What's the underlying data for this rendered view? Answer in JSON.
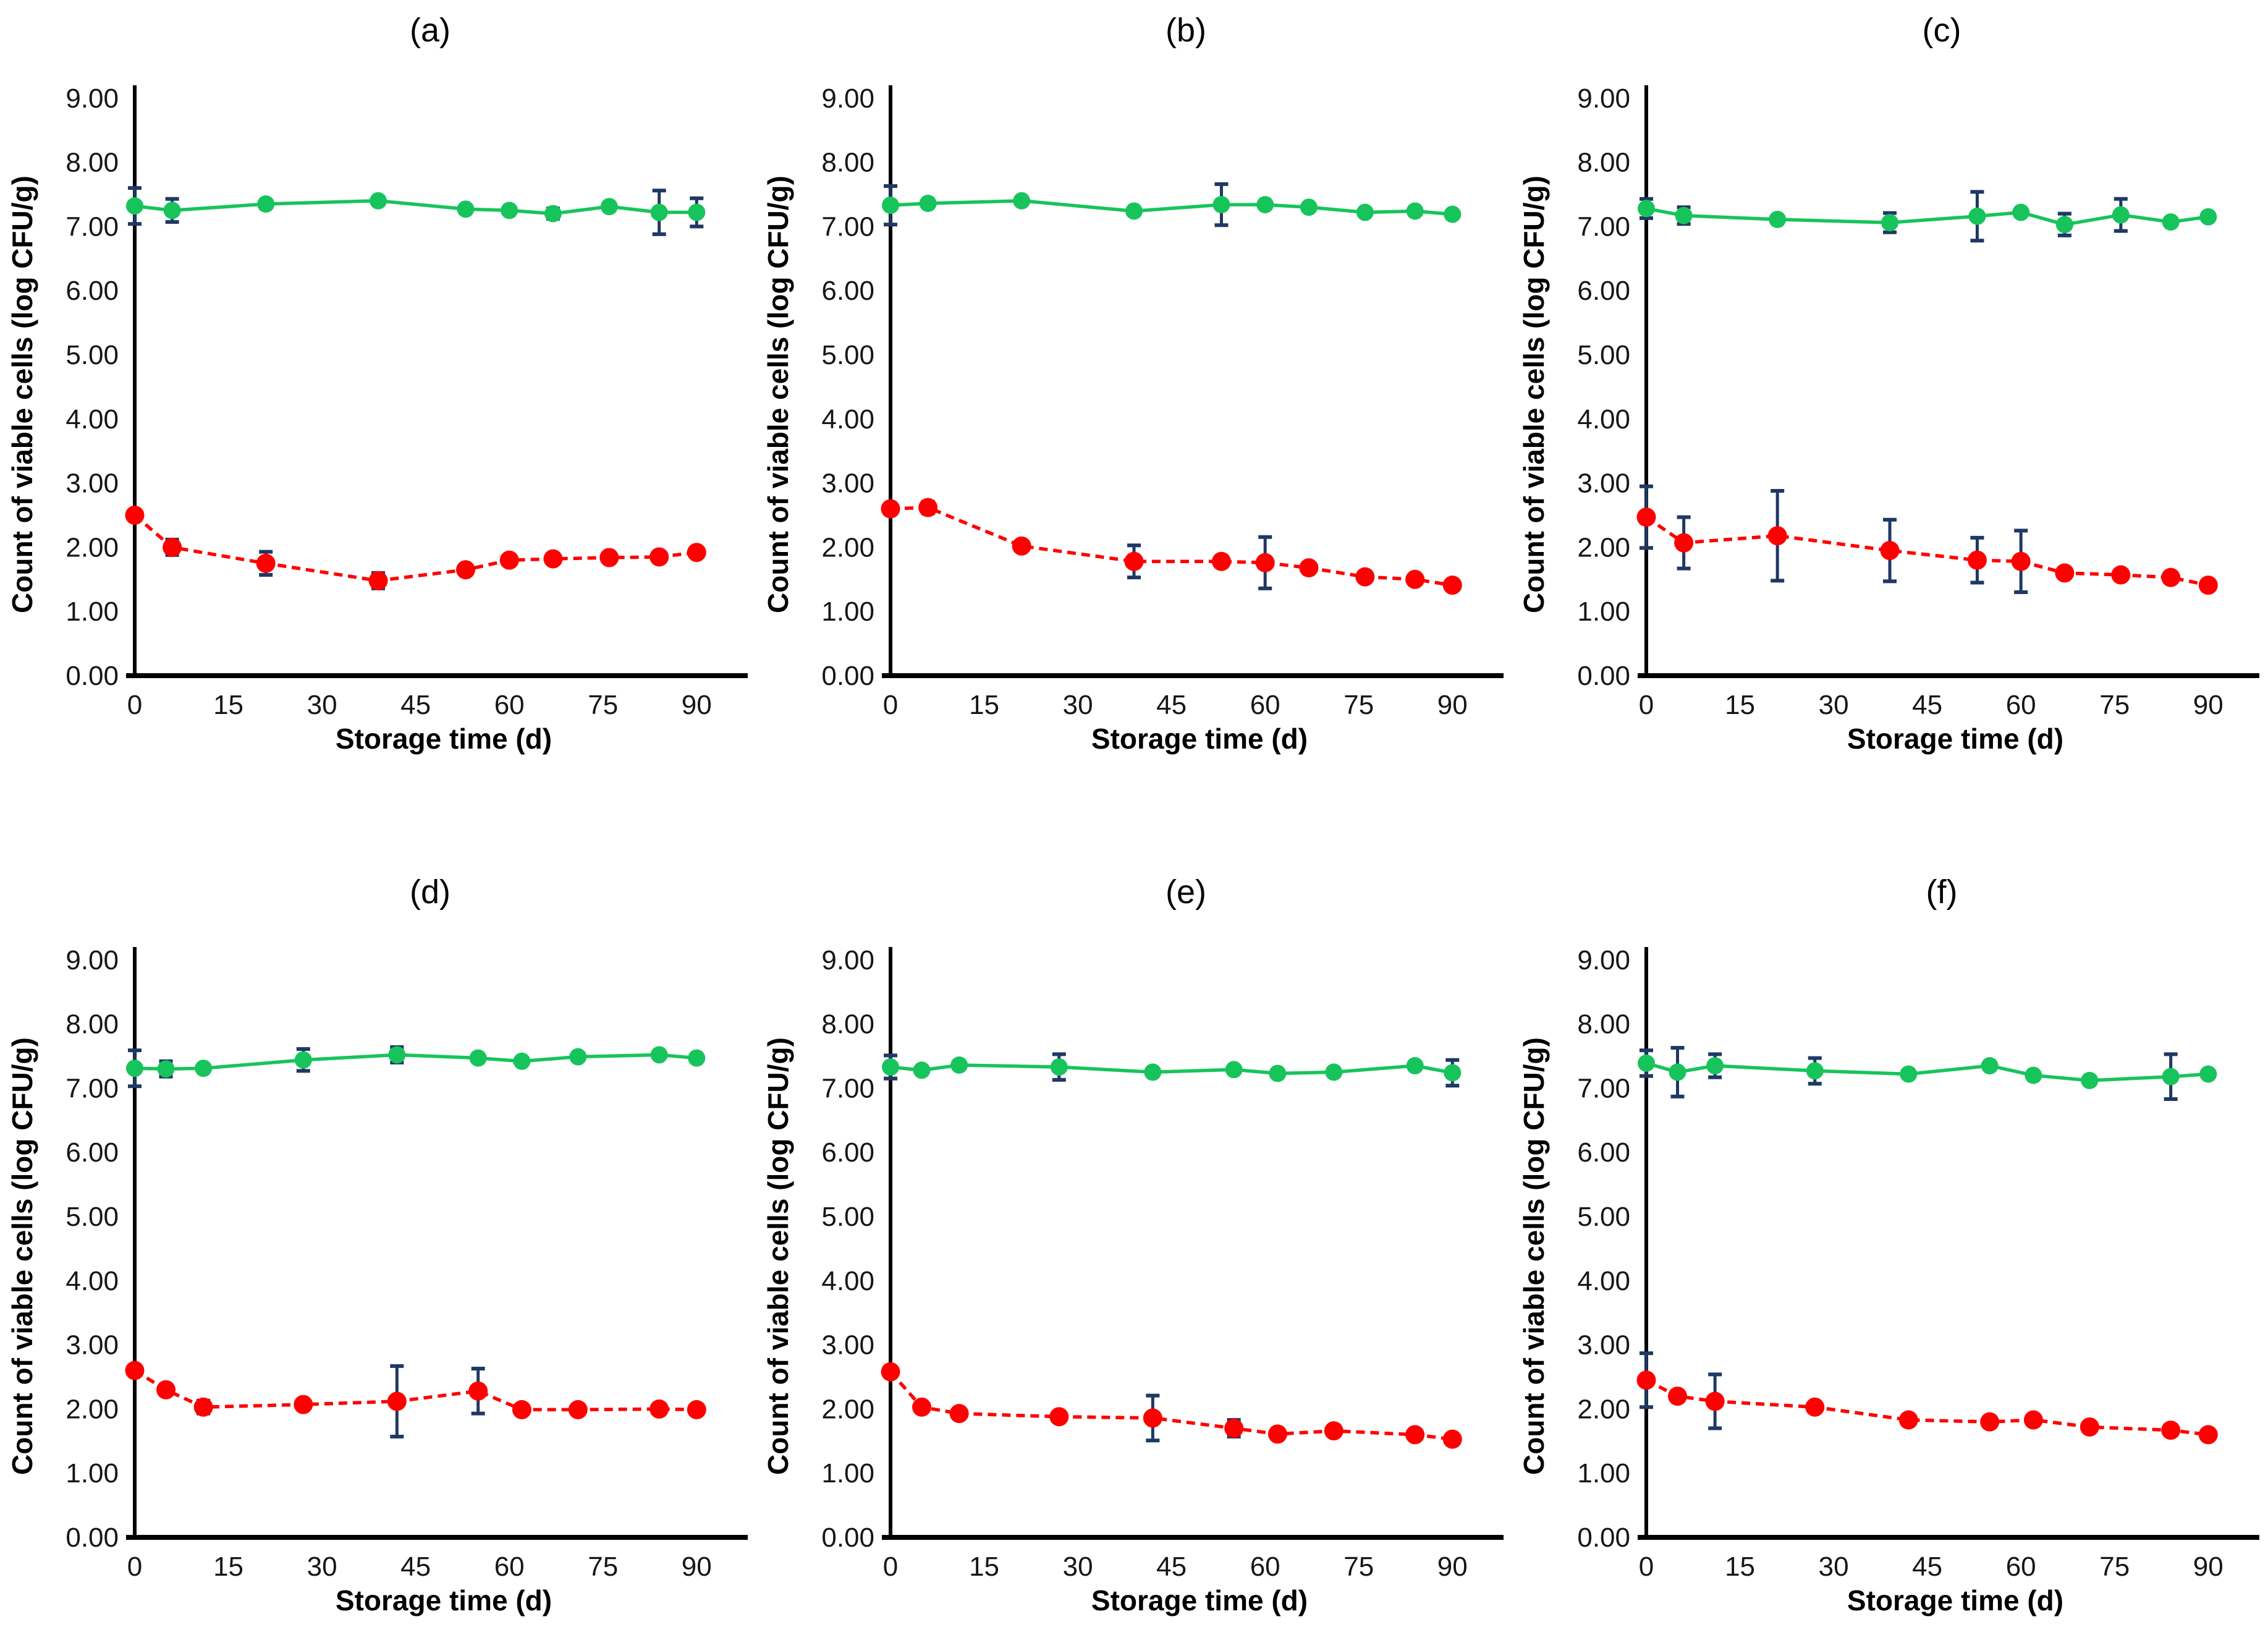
{
  "figure": {
    "background": "#FFFFFF",
    "axis_color": "#000000",
    "error_bar_color": "#1F3864",
    "viable_series_color": "#17C45B",
    "injured_series_color": "#FE0000"
  },
  "chart_data": [
    {
      "panel": "(a)",
      "type": "line",
      "xlabel": "Storage time (d)",
      "ylabel": "Count of viable cells (log CFU/g)",
      "xlim": [
        0,
        90
      ],
      "ylim": [
        0,
        9
      ],
      "xticks": [
        0,
        15,
        30,
        45,
        60,
        75,
        90
      ],
      "ytick_labels": [
        "0.00",
        "1.00",
        "2.00",
        "3.00",
        "4.00",
        "5.00",
        "6.00",
        "7.00",
        "8.00",
        "9.00"
      ],
      "grid": false,
      "legend": "none",
      "x": [
        0,
        6,
        21,
        39,
        53,
        60,
        67,
        76,
        84,
        90
      ],
      "series": [
        {
          "name": "green-solid",
          "color": "#17C45B",
          "dashed": false,
          "y": [
            7.32,
            7.25,
            7.35,
            7.4,
            7.27,
            7.25,
            7.2,
            7.31,
            7.22,
            7.22
          ],
          "yerr": [
            0.28,
            0.18,
            0.06,
            0.05,
            0,
            0,
            0.08,
            0,
            0.34,
            0.22
          ]
        },
        {
          "name": "red-dashed",
          "color": "#FE0000",
          "dashed": true,
          "y": [
            2.5,
            2.0,
            1.75,
            1.48,
            1.65,
            1.8,
            1.82,
            1.84,
            1.85,
            1.92
          ],
          "yerr": [
            0,
            0.12,
            0.18,
            0.12,
            0.07,
            0,
            0,
            0,
            0,
            0
          ]
        }
      ]
    },
    {
      "panel": "(b)",
      "type": "line",
      "xlabel": "Storage time (d)",
      "ylabel": "Count of viable cells (log CFU/g)",
      "xlim": [
        0,
        90
      ],
      "ylim": [
        0,
        9
      ],
      "xticks": [
        0,
        15,
        30,
        45,
        60,
        75,
        90
      ],
      "ytick_labels": [
        "0.00",
        "1.00",
        "2.00",
        "3.00",
        "4.00",
        "5.00",
        "6.00",
        "7.00",
        "8.00",
        "9.00"
      ],
      "grid": false,
      "legend": "none",
      "x": [
        0,
        6,
        21,
        39,
        53,
        60,
        67,
        76,
        84,
        90
      ],
      "series": [
        {
          "name": "green-solid",
          "color": "#17C45B",
          "dashed": false,
          "y": [
            7.33,
            7.36,
            7.4,
            7.24,
            7.34,
            7.34,
            7.3,
            7.22,
            7.24,
            7.19
          ],
          "yerr": [
            0.3,
            0,
            0,
            0,
            0.32,
            0,
            0,
            0,
            0,
            0
          ]
        },
        {
          "name": "red-dashed",
          "color": "#FE0000",
          "dashed": true,
          "y": [
            2.6,
            2.62,
            2.02,
            1.78,
            1.78,
            1.76,
            1.68,
            1.54,
            1.5,
            1.41
          ],
          "yerr": [
            0,
            0.09,
            0,
            0.25,
            0.07,
            0.4,
            0,
            0,
            0,
            0
          ]
        }
      ]
    },
    {
      "panel": "(c)",
      "type": "line",
      "xlabel": "Storage time (d)",
      "ylabel": "Count of viable cells (log CFU/g)",
      "xlim": [
        0,
        90
      ],
      "ylim": [
        0,
        9
      ],
      "xticks": [
        0,
        15,
        30,
        45,
        60,
        75,
        90
      ],
      "ytick_labels": [
        "0.00",
        "1.00",
        "2.00",
        "3.00",
        "4.00",
        "5.00",
        "6.00",
        "7.00",
        "8.00",
        "9.00"
      ],
      "grid": false,
      "legend": "none",
      "x": [
        0,
        6,
        21,
        39,
        53,
        60,
        67,
        76,
        84,
        90
      ],
      "series": [
        {
          "name": "green-solid",
          "color": "#17C45B",
          "dashed": false,
          "y": [
            7.28,
            7.17,
            7.11,
            7.06,
            7.16,
            7.22,
            7.03,
            7.18,
            7.07,
            7.15
          ],
          "yerr": [
            0.15,
            0.13,
            0,
            0.15,
            0.38,
            0,
            0.17,
            0.25,
            0,
            0
          ]
        },
        {
          "name": "red-dashed",
          "color": "#FE0000",
          "dashed": true,
          "y": [
            2.47,
            2.07,
            2.18,
            1.95,
            1.8,
            1.78,
            1.6,
            1.57,
            1.53,
            1.41
          ],
          "yerr": [
            0.48,
            0.4,
            0.7,
            0.48,
            0.35,
            0.48,
            0,
            0,
            0,
            0
          ]
        }
      ]
    },
    {
      "panel": "(d)",
      "type": "line",
      "xlabel": "Storage time (d)",
      "ylabel": "Count of viable cells (log CFU/g)",
      "xlim": [
        0,
        90
      ],
      "ylim": [
        0,
        9
      ],
      "xticks": [
        0,
        15,
        30,
        45,
        60,
        75,
        90
      ],
      "ytick_labels": [
        "0.00",
        "1.00",
        "2.00",
        "3.00",
        "4.00",
        "5.00",
        "6.00",
        "7.00",
        "8.00",
        "9.00"
      ],
      "grid": false,
      "legend": "none",
      "x": [
        0,
        5,
        11,
        27,
        42,
        55,
        62,
        71,
        84,
        90
      ],
      "series": [
        {
          "name": "green-solid",
          "color": "#17C45B",
          "dashed": false,
          "y": [
            7.31,
            7.3,
            7.31,
            7.44,
            7.52,
            7.47,
            7.42,
            7.49,
            7.52,
            7.47
          ],
          "yerr": [
            0.28,
            0.12,
            0,
            0.17,
            0.12,
            0,
            0,
            0,
            0,
            0
          ]
        },
        {
          "name": "red-dashed",
          "color": "#FE0000",
          "dashed": true,
          "y": [
            2.6,
            2.3,
            2.03,
            2.07,
            2.12,
            2.28,
            1.99,
            1.99,
            2.0,
            1.99
          ],
          "yerr": [
            0,
            0,
            0.1,
            0,
            0.55,
            0.35,
            0,
            0,
            0,
            0
          ]
        }
      ]
    },
    {
      "panel": "(e)",
      "type": "line",
      "xlabel": "Storage time (d)",
      "ylabel": "Count of viable cells (log CFU/g)",
      "xlim": [
        0,
        90
      ],
      "ylim": [
        0,
        9
      ],
      "xticks": [
        0,
        15,
        30,
        45,
        60,
        75,
        90
      ],
      "ytick_labels": [
        "0.00",
        "1.00",
        "2.00",
        "3.00",
        "4.00",
        "5.00",
        "6.00",
        "7.00",
        "8.00",
        "9.00"
      ],
      "grid": false,
      "legend": "none",
      "x": [
        0,
        5,
        11,
        27,
        42,
        55,
        62,
        71,
        84,
        90
      ],
      "series": [
        {
          "name": "green-solid",
          "color": "#17C45B",
          "dashed": false,
          "y": [
            7.33,
            7.28,
            7.36,
            7.33,
            7.25,
            7.29,
            7.23,
            7.25,
            7.35,
            7.24
          ],
          "yerr": [
            0.18,
            0,
            0,
            0.2,
            0,
            0,
            0,
            0,
            0,
            0.2
          ]
        },
        {
          "name": "red-dashed",
          "color": "#FE0000",
          "dashed": true,
          "y": [
            2.58,
            2.03,
            1.93,
            1.88,
            1.86,
            1.7,
            1.61,
            1.66,
            1.6,
            1.53
          ],
          "yerr": [
            0,
            0,
            0,
            0,
            0.35,
            0.13,
            0,
            0,
            0,
            0
          ]
        }
      ]
    },
    {
      "panel": "(f)",
      "type": "line",
      "xlabel": "Storage time (d)",
      "ylabel": "Count of viable cells (log CFU/g)",
      "xlim": [
        0,
        90
      ],
      "ylim": [
        0,
        9
      ],
      "xticks": [
        0,
        15,
        30,
        45,
        60,
        75,
        90
      ],
      "ytick_labels": [
        "0.00",
        "1.00",
        "2.00",
        "3.00",
        "4.00",
        "5.00",
        "6.00",
        "7.00",
        "8.00",
        "9.00"
      ],
      "grid": false,
      "legend": "none",
      "x": [
        0,
        5,
        11,
        27,
        42,
        55,
        62,
        71,
        84,
        90
      ],
      "series": [
        {
          "name": "green-solid",
          "color": "#17C45B",
          "dashed": false,
          "y": [
            7.39,
            7.25,
            7.35,
            7.27,
            7.22,
            7.35,
            7.2,
            7.12,
            7.18,
            7.22
          ],
          "yerr": [
            0.2,
            0.38,
            0.18,
            0.2,
            0,
            0,
            0,
            0.06,
            0.35,
            0
          ]
        },
        {
          "name": "red-dashed",
          "color": "#FE0000",
          "dashed": true,
          "y": [
            2.45,
            2.2,
            2.12,
            2.03,
            1.83,
            1.8,
            1.83,
            1.72,
            1.67,
            1.6
          ],
          "yerr": [
            0.42,
            0,
            0.42,
            0,
            0,
            0,
            0,
            0,
            0,
            0
          ]
        }
      ]
    }
  ]
}
